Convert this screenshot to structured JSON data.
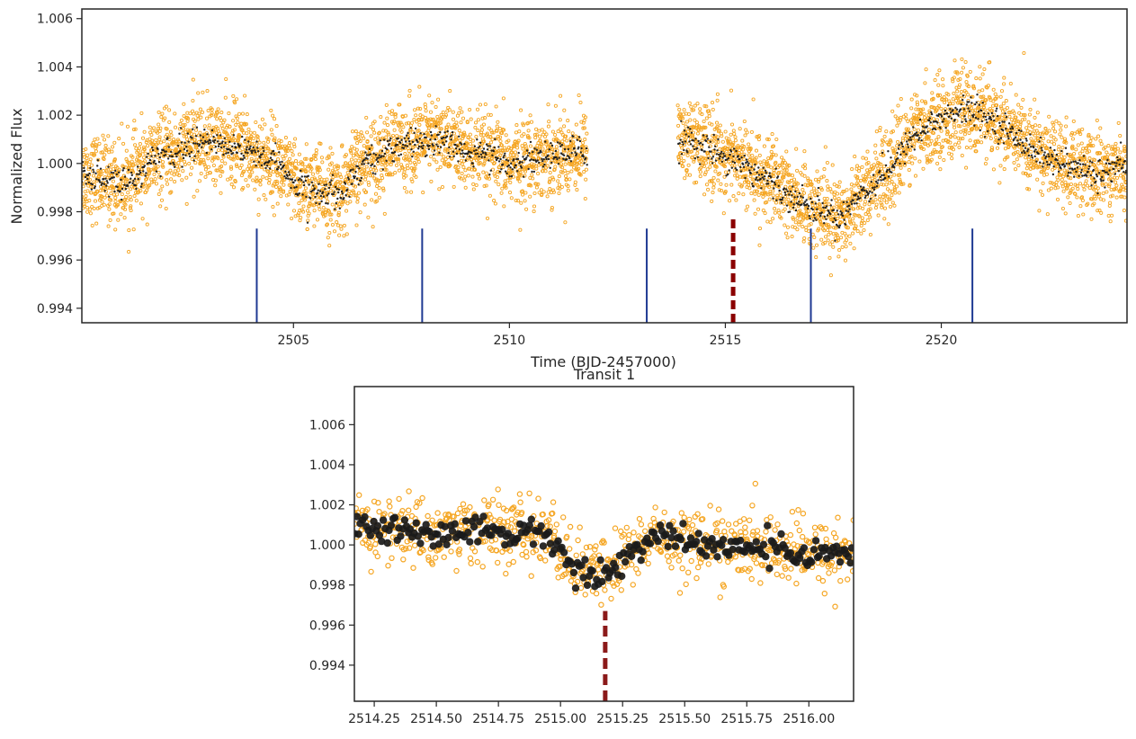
{
  "chart_data": [
    {
      "type": "scatter",
      "title": "",
      "xlabel": "Time (BJD-2457000)",
      "ylabel": "Normalized Flux",
      "xlim": [
        2500.1,
        2524.3
      ],
      "ylim": [
        0.9934,
        1.0064
      ],
      "xticks": [
        2505,
        2510,
        2515,
        2520
      ],
      "xtick_labels": [
        "2505",
        "2510",
        "2515",
        "2520"
      ],
      "yticks": [
        0.994,
        0.996,
        0.998,
        1.0,
        1.002,
        1.004,
        1.006
      ],
      "ytick_labels": [
        "0.994",
        "0.996",
        "0.998",
        "1.000",
        "1.002",
        "1.004",
        "1.006"
      ],
      "grid": false,
      "data_gap": [
        2511.8,
        2513.9
      ],
      "series": [
        {
          "kind": "raw",
          "color": "#f5a623",
          "x": [
            2500.2,
            2501.0,
            2502.0,
            2502.8,
            2503.6,
            2504.4,
            2505.2,
            2506.0,
            2506.8,
            2507.6,
            2508.4,
            2509.2,
            2510.0,
            2510.8,
            2511.6,
            2514.0,
            2514.6,
            2515.2,
            2515.8,
            2516.4,
            2517.0,
            2517.6,
            2518.2,
            2518.8,
            2519.4,
            2520.0,
            2520.6,
            2521.2,
            2521.8,
            2522.4,
            2523.0,
            2523.6,
            2524.2
          ],
          "y": [
            0.9995,
            0.9992,
            1.0003,
            1.0009,
            1.0008,
            1.0002,
            0.999,
            0.9988,
            1.0002,
            1.0008,
            1.001,
            1.0004,
            1.0,
            1.0003,
            1.0005,
            1.001,
            1.0006,
            1.0002,
            0.9995,
            0.9988,
            0.9982,
            0.9978,
            0.9988,
            0.9998,
            1.0012,
            1.0019,
            1.0022,
            1.0018,
            1.001,
            1.0003,
            0.9998,
            0.9996,
            0.9998
          ]
        },
        {
          "kind": "binned",
          "color": "#1a1a1a",
          "x": [
            2500.2,
            2501.0,
            2502.0,
            2502.8,
            2503.6,
            2504.4,
            2505.2,
            2506.0,
            2506.8,
            2507.6,
            2508.4,
            2509.2,
            2510.0,
            2510.8,
            2511.6,
            2514.0,
            2514.6,
            2515.2,
            2515.8,
            2516.4,
            2517.0,
            2517.6,
            2518.2,
            2518.8,
            2519.4,
            2520.0,
            2520.6,
            2521.2,
            2521.8,
            2522.4,
            2523.0,
            2523.6,
            2524.2
          ],
          "y": [
            0.9995,
            0.9992,
            1.0003,
            1.0009,
            1.0008,
            1.0002,
            0.999,
            0.9988,
            1.0002,
            1.0008,
            1.001,
            1.0004,
            1.0,
            1.0003,
            1.0005,
            1.001,
            1.0006,
            1.0002,
            0.9995,
            0.9988,
            0.9982,
            0.9978,
            0.9988,
            0.9998,
            1.0012,
            1.0019,
            1.0022,
            1.0018,
            1.001,
            1.0003,
            0.9998,
            0.9996,
            0.9998
          ]
        }
      ],
      "vlines": [
        {
          "x": 2504.15,
          "ymax": 0.9973,
          "color": "#1f3a93",
          "style": "solid"
        },
        {
          "x": 2507.98,
          "ymax": 0.9973,
          "color": "#1f3a93",
          "style": "solid"
        },
        {
          "x": 2513.18,
          "ymax": 0.9973,
          "color": "#1f3a93",
          "style": "solid"
        },
        {
          "x": 2516.98,
          "ymax": 0.9973,
          "color": "#1f3a93",
          "style": "solid"
        },
        {
          "x": 2520.72,
          "ymax": 0.9973,
          "color": "#1f3a93",
          "style": "solid"
        },
        {
          "x": 2515.18,
          "ymax": 0.9978,
          "color": "#8b0000",
          "style": "dashed"
        }
      ]
    },
    {
      "type": "scatter",
      "title": "Transit 1",
      "xlabel": "",
      "ylabel": "",
      "xlim": [
        2514.17,
        2516.18
      ],
      "ylim": [
        0.9922,
        1.0079
      ],
      "xticks": [
        2514.25,
        2514.5,
        2514.75,
        2515.0,
        2515.25,
        2515.5,
        2515.75,
        2516.0
      ],
      "xtick_labels": [
        "2514.25",
        "2514.50",
        "2514.75",
        "2515.00",
        "2515.25",
        "2515.50",
        "2515.75",
        "2516.00"
      ],
      "yticks": [
        0.994,
        0.996,
        0.998,
        1.0,
        1.002,
        1.004,
        1.006
      ],
      "ytick_labels": [
        "0.994",
        "0.996",
        "0.998",
        "1.000",
        "1.002",
        "1.004",
        "1.006"
      ],
      "grid": false,
      "transit_window": [
        2515.04,
        2515.25
      ],
      "transit_depth": 0.0018,
      "series": [
        {
          "kind": "raw",
          "color": "#f5a623",
          "x": [
            2514.2,
            2514.35,
            2514.5,
            2514.65,
            2514.8,
            2514.95,
            2515.05,
            2515.15,
            2515.25,
            2515.4,
            2515.55,
            2515.7,
            2515.85,
            2516.0,
            2516.15
          ],
          "y": [
            1.0008,
            1.0008,
            1.0005,
            1.0008,
            1.0006,
            1.0005,
            0.999,
            0.9985,
            0.9995,
            1.0004,
            1.0001,
            0.9999,
            0.9998,
            0.9995,
            0.9996
          ]
        },
        {
          "kind": "binned",
          "color": "#1a1a1a",
          "x": [
            2514.2,
            2514.35,
            2514.5,
            2514.65,
            2514.8,
            2514.95,
            2515.05,
            2515.15,
            2515.25,
            2515.4,
            2515.55,
            2515.7,
            2515.85,
            2516.0,
            2516.15
          ],
          "y": [
            1.0008,
            1.0008,
            1.0005,
            1.0008,
            1.0006,
            1.0005,
            0.999,
            0.9985,
            0.9995,
            1.0004,
            1.0001,
            0.9999,
            0.9998,
            0.9995,
            0.9996
          ]
        }
      ],
      "vlines": [
        {
          "x": 2515.18,
          "ymax": 0.9967,
          "color": "#8b1a1a",
          "style": "dashed"
        }
      ]
    }
  ]
}
